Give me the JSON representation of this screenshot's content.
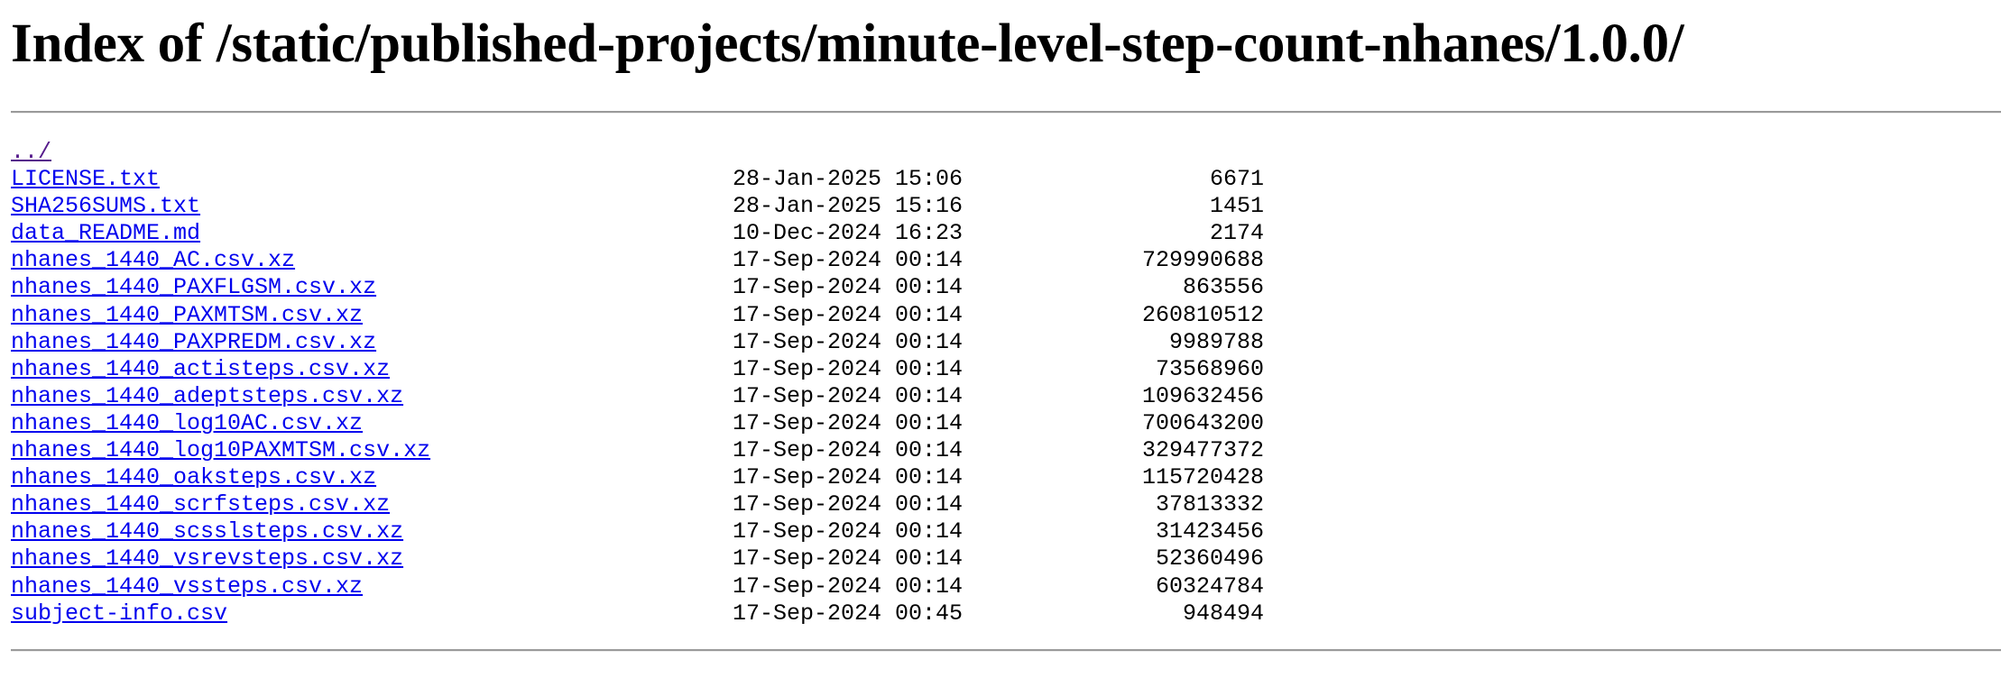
{
  "page": {
    "title": "Index of /static/published-projects/minute-level-step-count-nhanes/1.0.0/"
  },
  "colors": {
    "link": "#0000ee",
    "visited_link": "#551a8b",
    "rule": "#9a9a9a"
  },
  "listing": {
    "parent": {
      "name": "../"
    },
    "entries": [
      {
        "name": "LICENSE.txt",
        "date": "28-Jan-2025 15:06",
        "size": "6671"
      },
      {
        "name": "SHA256SUMS.txt",
        "date": "28-Jan-2025 15:16",
        "size": "1451"
      },
      {
        "name": "data_README.md",
        "date": "10-Dec-2024 16:23",
        "size": "2174"
      },
      {
        "name": "nhanes_1440_AC.csv.xz",
        "date": "17-Sep-2024 00:14",
        "size": "729990688"
      },
      {
        "name": "nhanes_1440_PAXFLGSM.csv.xz",
        "date": "17-Sep-2024 00:14",
        "size": "863556"
      },
      {
        "name": "nhanes_1440_PAXMTSM.csv.xz",
        "date": "17-Sep-2024 00:14",
        "size": "260810512"
      },
      {
        "name": "nhanes_1440_PAXPREDM.csv.xz",
        "date": "17-Sep-2024 00:14",
        "size": "9989788"
      },
      {
        "name": "nhanes_1440_actisteps.csv.xz",
        "date": "17-Sep-2024 00:14",
        "size": "73568960"
      },
      {
        "name": "nhanes_1440_adeptsteps.csv.xz",
        "date": "17-Sep-2024 00:14",
        "size": "109632456"
      },
      {
        "name": "nhanes_1440_log10AC.csv.xz",
        "date": "17-Sep-2024 00:14",
        "size": "700643200"
      },
      {
        "name": "nhanes_1440_log10PAXMTSM.csv.xz",
        "date": "17-Sep-2024 00:14",
        "size": "329477372"
      },
      {
        "name": "nhanes_1440_oaksteps.csv.xz",
        "date": "17-Sep-2024 00:14",
        "size": "115720428"
      },
      {
        "name": "nhanes_1440_scrfsteps.csv.xz",
        "date": "17-Sep-2024 00:14",
        "size": "37813332"
      },
      {
        "name": "nhanes_1440_scsslsteps.csv.xz",
        "date": "17-Sep-2024 00:14",
        "size": "31423456"
      },
      {
        "name": "nhanes_1440_vsrevsteps.csv.xz",
        "date": "17-Sep-2024 00:14",
        "size": "52360496"
      },
      {
        "name": "nhanes_1440_vssteps.csv.xz",
        "date": "17-Sep-2024 00:14",
        "size": "60324784"
      },
      {
        "name": "subject-info.csv",
        "date": "17-Sep-2024 00:45",
        "size": "948494"
      }
    ]
  }
}
